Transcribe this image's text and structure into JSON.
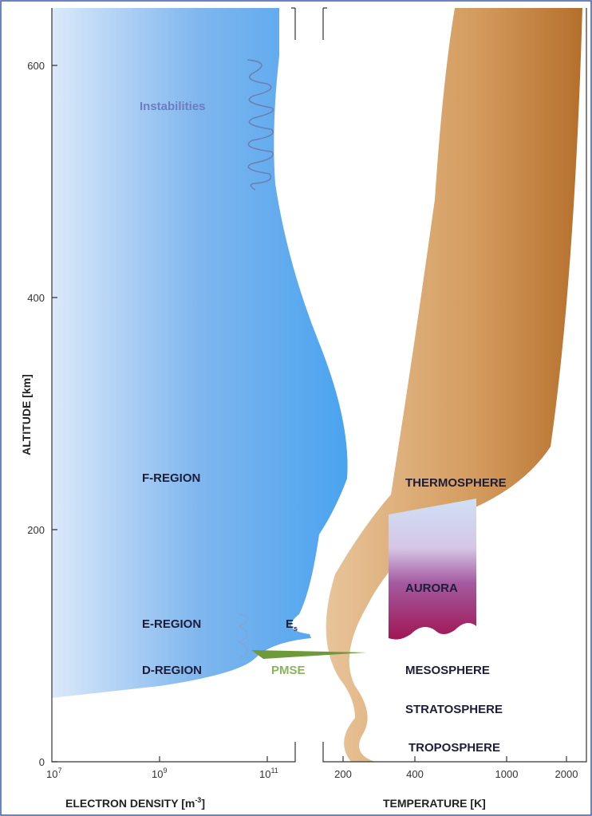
{
  "axes": {
    "y_label": "ALTITUDE [km]",
    "y_ticks": [
      "0",
      "200",
      "400",
      "600"
    ],
    "left_x_label": {
      "text": "ELECTRON DENSITY [m",
      "sup": "-3",
      "end": "]"
    },
    "left_x_ticks": [
      {
        "base": "10",
        "exp": "7"
      },
      {
        "base": "10",
        "exp": "9"
      },
      {
        "base": "10",
        "exp": "11"
      }
    ],
    "right_x_label": "TEMPERATURE [K]",
    "right_x_ticks": [
      "200",
      "400",
      "1000",
      "2000"
    ]
  },
  "labels": {
    "instabilities": "Instabilities",
    "f_region": "F-REGION",
    "e_region": "E-REGION",
    "d_region": "D-REGION",
    "es": {
      "text": "E",
      "sub": "s"
    },
    "pmse": "PMSE",
    "thermosphere": "THERMOSPHERE",
    "aurora": "AURORA",
    "mesosphere": "MESOSPHERE",
    "stratosphere": "STRATOSPHERE",
    "troposphere": "TROPOSPHERE"
  }
}
